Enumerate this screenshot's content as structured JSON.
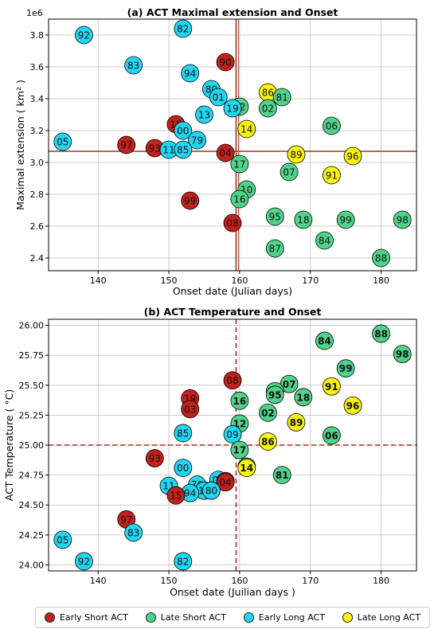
{
  "colors": {
    "Early Short ACT": "#c0211b",
    "Late Short ACT": "#4fd38a",
    "Early Long ACT": "#22d6f2",
    "Late Long ACT": "#f7f20e",
    "refline_a": "#9a3b1c",
    "refline_b": "#c0211b",
    "grid": "#bdbdbd"
  },
  "legend": {
    "items": [
      "Early Short ACT",
      "Late Short ACT",
      "Early Long ACT",
      "Late Long ACT"
    ],
    "placement": "bottom"
  },
  "chart_data": [
    {
      "type": "scatter",
      "title": "(a) ACT Maximal extension and Onset",
      "xlabel": "Onset date (Julian days)",
      "ylabel": "Maximal extension ( km² )",
      "y_offset_label": "1e6",
      "xlim": [
        133,
        185
      ],
      "ylim": [
        2.32,
        3.9
      ],
      "xticks": [
        "140",
        "150",
        "160",
        "170",
        "180"
      ],
      "xtick_values": [
        140,
        150,
        160,
        170,
        180
      ],
      "yticks": [
        "2.4",
        "2.6",
        "2.8",
        "3.0",
        "3.2",
        "3.4",
        "3.6",
        "3.8"
      ],
      "ytick_values": [
        2.4,
        2.6,
        2.8,
        3.0,
        3.2,
        3.4,
        3.6,
        3.8
      ],
      "grid": true,
      "reference_lines": {
        "x": 159.5,
        "y": 3.07,
        "style": "solid"
      },
      "points": [
        {
          "label": "92",
          "x": 138,
          "y": 3.8,
          "group": "Early Long ACT"
        },
        {
          "label": "82",
          "x": 152,
          "y": 3.84,
          "group": "Early Long ACT"
        },
        {
          "label": "83",
          "x": 145,
          "y": 3.61,
          "group": "Early Long ACT"
        },
        {
          "label": "90",
          "x": 158,
          "y": 3.63,
          "group": "Early Short ACT"
        },
        {
          "label": "94",
          "x": 153,
          "y": 3.56,
          "group": "Early Long ACT"
        },
        {
          "label": "80",
          "x": 156,
          "y": 3.46,
          "group": "Early Long ACT"
        },
        {
          "label": "01",
          "x": 157,
          "y": 3.41,
          "group": "Early Long ACT"
        },
        {
          "label": "86",
          "x": 164,
          "y": 3.44,
          "group": "Late Long ACT"
        },
        {
          "label": "81",
          "x": 166,
          "y": 3.41,
          "group": "Late Short ACT"
        },
        {
          "label": "12",
          "x": 160,
          "y": 3.35,
          "group": "Late Short ACT"
        },
        {
          "label": "19",
          "x": 159,
          "y": 3.34,
          "group": "Early Long ACT"
        },
        {
          "label": "02",
          "x": 164,
          "y": 3.34,
          "group": "Late Short ACT"
        },
        {
          "label": "13",
          "x": 155,
          "y": 3.3,
          "group": "Early Long ACT"
        },
        {
          "label": "15",
          "x": 151,
          "y": 3.24,
          "group": "Early Short ACT"
        },
        {
          "label": "06",
          "x": 173,
          "y": 3.23,
          "group": "Late Short ACT"
        },
        {
          "label": "00",
          "x": 152,
          "y": 3.2,
          "group": "Early Long ACT"
        },
        {
          "label": "14",
          "x": 161,
          "y": 3.21,
          "group": "Late Long ACT"
        },
        {
          "label": "79",
          "x": 154,
          "y": 3.14,
          "group": "Early Long ACT"
        },
        {
          "label": "05",
          "x": 135,
          "y": 3.13,
          "group": "Early Long ACT"
        },
        {
          "label": "97",
          "x": 144,
          "y": 3.11,
          "group": "Early Short ACT"
        },
        {
          "label": "93",
          "x": 148,
          "y": 3.09,
          "group": "Early Short ACT"
        },
        {
          "label": "11",
          "x": 150,
          "y": 3.08,
          "group": "Early Long ACT"
        },
        {
          "label": "85",
          "x": 152,
          "y": 3.08,
          "group": "Early Long ACT"
        },
        {
          "label": "04",
          "x": 158,
          "y": 3.06,
          "group": "Early Short ACT"
        },
        {
          "label": "89",
          "x": 168,
          "y": 3.05,
          "group": "Late Long ACT"
        },
        {
          "label": "96",
          "x": 176,
          "y": 3.04,
          "group": "Late Long ACT"
        },
        {
          "label": "17",
          "x": 160,
          "y": 2.99,
          "group": "Late Short ACT"
        },
        {
          "label": "07",
          "x": 167,
          "y": 2.94,
          "group": "Late Short ACT"
        },
        {
          "label": "91",
          "x": 173,
          "y": 2.92,
          "group": "Late Long ACT"
        },
        {
          "label": "10",
          "x": 161,
          "y": 2.83,
          "group": "Late Short ACT"
        },
        {
          "label": "16",
          "x": 160,
          "y": 2.77,
          "group": "Late Short ACT"
        },
        {
          "label": "99",
          "x": 153,
          "y": 2.76,
          "group": "Early Short ACT"
        },
        {
          "label": "95",
          "x": 165,
          "y": 2.66,
          "group": "Late Short ACT"
        },
        {
          "label": "18",
          "x": 169,
          "y": 2.64,
          "group": "Late Short ACT"
        },
        {
          "label": "99",
          "x": 175,
          "y": 2.64,
          "group": "Late Short ACT"
        },
        {
          "label": "98",
          "x": 183,
          "y": 2.64,
          "group": "Late Short ACT"
        },
        {
          "label": "08",
          "x": 159,
          "y": 2.62,
          "group": "Early Short ACT"
        },
        {
          "label": "84",
          "x": 172,
          "y": 2.51,
          "group": "Late Short ACT"
        },
        {
          "label": "87",
          "x": 165,
          "y": 2.46,
          "group": "Late Short ACT"
        },
        {
          "label": "88",
          "x": 180,
          "y": 2.4,
          "group": "Late Short ACT"
        }
      ]
    },
    {
      "type": "scatter",
      "title": "(b) ACT Temperature and Onset",
      "xlabel": "Onset date (Juilian days )",
      "ylabel": "ACT Temperature  ( °C)",
      "xlim": [
        133,
        185
      ],
      "ylim": [
        23.95,
        26.05
      ],
      "xticks": [
        "140",
        "150",
        "160",
        "170",
        "180"
      ],
      "xtick_values": [
        140,
        150,
        160,
        170,
        180
      ],
      "yticks": [
        "24.00",
        "24.25",
        "24.50",
        "24.75",
        "25.00",
        "25.25",
        "25.50",
        "25.75",
        "26.00"
      ],
      "ytick_values": [
        24.0,
        24.25,
        24.5,
        24.75,
        25.0,
        25.25,
        25.5,
        25.75,
        26.0
      ],
      "grid": true,
      "reference_lines": {
        "x": 159.5,
        "y": 25.0,
        "style": "dashed"
      },
      "points": [
        {
          "label": "88",
          "x": 180,
          "y": 25.93,
          "group": "Late Short ACT"
        },
        {
          "label": "84",
          "x": 172,
          "y": 25.87,
          "group": "Late Short ACT"
        },
        {
          "label": "98",
          "x": 183,
          "y": 25.76,
          "group": "Late Short ACT"
        },
        {
          "label": "99",
          "x": 175,
          "y": 25.64,
          "group": "Late Short ACT"
        },
        {
          "label": "08",
          "x": 159,
          "y": 25.54,
          "group": "Early Short ACT"
        },
        {
          "label": "07",
          "x": 167,
          "y": 25.51,
          "group": "Late Short ACT"
        },
        {
          "label": "91",
          "x": 173,
          "y": 25.49,
          "group": "Late Long ACT"
        },
        {
          "label": "87",
          "x": 165,
          "y": 25.45,
          "group": "Late Short ACT"
        },
        {
          "label": "95",
          "x": 165,
          "y": 25.42,
          "group": "Late Short ACT"
        },
        {
          "label": "18",
          "x": 169,
          "y": 25.4,
          "group": "Late Short ACT"
        },
        {
          "label": "19",
          "x": 153,
          "y": 25.39,
          "group": "Early Short ACT"
        },
        {
          "label": "16",
          "x": 160,
          "y": 25.37,
          "group": "Late Short ACT"
        },
        {
          "label": "96",
          "x": 176,
          "y": 25.33,
          "group": "Late Long ACT"
        },
        {
          "label": "03",
          "x": 153,
          "y": 25.3,
          "group": "Early Short ACT"
        },
        {
          "label": "02",
          "x": 164,
          "y": 25.27,
          "group": "Late Short ACT"
        },
        {
          "label": "89",
          "x": 168,
          "y": 25.19,
          "group": "Late Long ACT"
        },
        {
          "label": "12",
          "x": 160,
          "y": 25.18,
          "group": "Late Short ACT"
        },
        {
          "label": "85",
          "x": 152,
          "y": 25.1,
          "group": "Early Long ACT"
        },
        {
          "label": "09",
          "x": 159,
          "y": 25.09,
          "group": "Early Long ACT"
        },
        {
          "label": "06",
          "x": 173,
          "y": 25.08,
          "group": "Late Short ACT"
        },
        {
          "label": "86",
          "x": 164,
          "y": 25.03,
          "group": "Late Long ACT"
        },
        {
          "label": "17",
          "x": 160,
          "y": 24.96,
          "group": "Late Short ACT"
        },
        {
          "label": "93",
          "x": 148,
          "y": 24.89,
          "group": "Early Short ACT"
        },
        {
          "label": "10",
          "x": 161,
          "y": 24.82,
          "group": "Late Short ACT"
        },
        {
          "label": "14",
          "x": 161,
          "y": 24.81,
          "group": "Late Long ACT"
        },
        {
          "label": "00",
          "x": 152,
          "y": 24.81,
          "group": "Early Long ACT"
        },
        {
          "label": "81",
          "x": 166,
          "y": 24.75,
          "group": "Late Short ACT"
        },
        {
          "label": "01",
          "x": 157,
          "y": 24.71,
          "group": "Early Long ACT"
        },
        {
          "label": "90",
          "x": 158,
          "y": 24.7,
          "group": "Early Short ACT"
        },
        {
          "label": "04",
          "x": 158,
          "y": 24.69,
          "group": "Early Short ACT"
        },
        {
          "label": "79",
          "x": 154,
          "y": 24.67,
          "group": "Early Long ACT"
        },
        {
          "label": "11",
          "x": 150,
          "y": 24.66,
          "group": "Early Long ACT"
        },
        {
          "label": "13",
          "x": 155,
          "y": 24.62,
          "group": "Early Long ACT"
        },
        {
          "label": "80",
          "x": 156,
          "y": 24.62,
          "group": "Early Long ACT"
        },
        {
          "label": "94",
          "x": 153,
          "y": 24.6,
          "group": "Early Long ACT"
        },
        {
          "label": "15",
          "x": 151,
          "y": 24.58,
          "group": "Early Short ACT"
        },
        {
          "label": "97",
          "x": 144,
          "y": 24.38,
          "group": "Early Short ACT"
        },
        {
          "label": "83",
          "x": 145,
          "y": 24.27,
          "group": "Early Long ACT"
        },
        {
          "label": "05",
          "x": 135,
          "y": 24.21,
          "group": "Early Long ACT"
        },
        {
          "label": "92",
          "x": 138,
          "y": 24.03,
          "group": "Early Long ACT"
        },
        {
          "label": "82",
          "x": 152,
          "y": 24.03,
          "group": "Early Long ACT"
        }
      ]
    }
  ]
}
